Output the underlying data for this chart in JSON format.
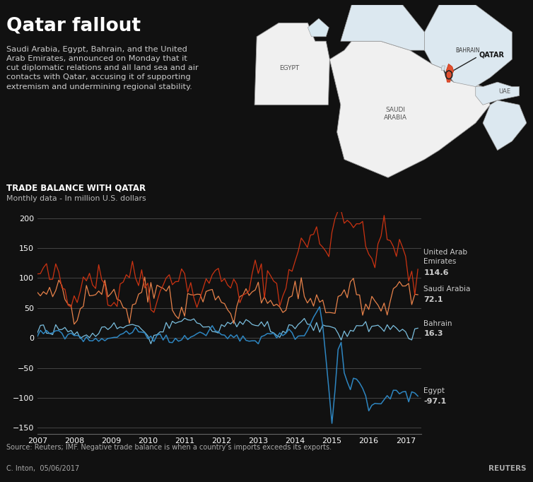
{
  "title": "Qatar fallout",
  "subtitle_lines": [
    "Saudi Arabia, Egypt, Bahrain, and the United",
    "Arab Emirates, announced on Monday that it",
    "cut diplomatic relations and all land sea and air",
    "contacts with Qatar, accusing it of supporting",
    "extremism and undermining regional stability."
  ],
  "chart_title": "TRADE BALANCE WITH QATAR",
  "chart_subtitle": "Monthly data - In million U.S. dollars",
  "source_text": "Source: Reuters; IMF. Negative trade balance is when a country’s imports exceeds its exports.",
  "credit_text": "C. Inton,  05/06/2017",
  "reuters_text": "REUTERS",
  "ylim": [
    -160,
    210
  ],
  "yticks": [
    -150,
    -100,
    -50,
    0,
    50,
    100,
    150,
    200
  ],
  "uae_color": "#cc3311",
  "sa_color": "#e8824a",
  "bah_color": "#7bbfdf",
  "egypt_color": "#2e86c1",
  "background_color": "#111111",
  "chart_bg": "#111111",
  "grid_color": "#444444",
  "text_color": "#ffffff",
  "label_color": "#cccccc",
  "map_sea_color": "#a8cfe0",
  "map_land_color": "#f0f0f0",
  "map_land2_color": "#dce8f0",
  "map_border_color": "#999999"
}
